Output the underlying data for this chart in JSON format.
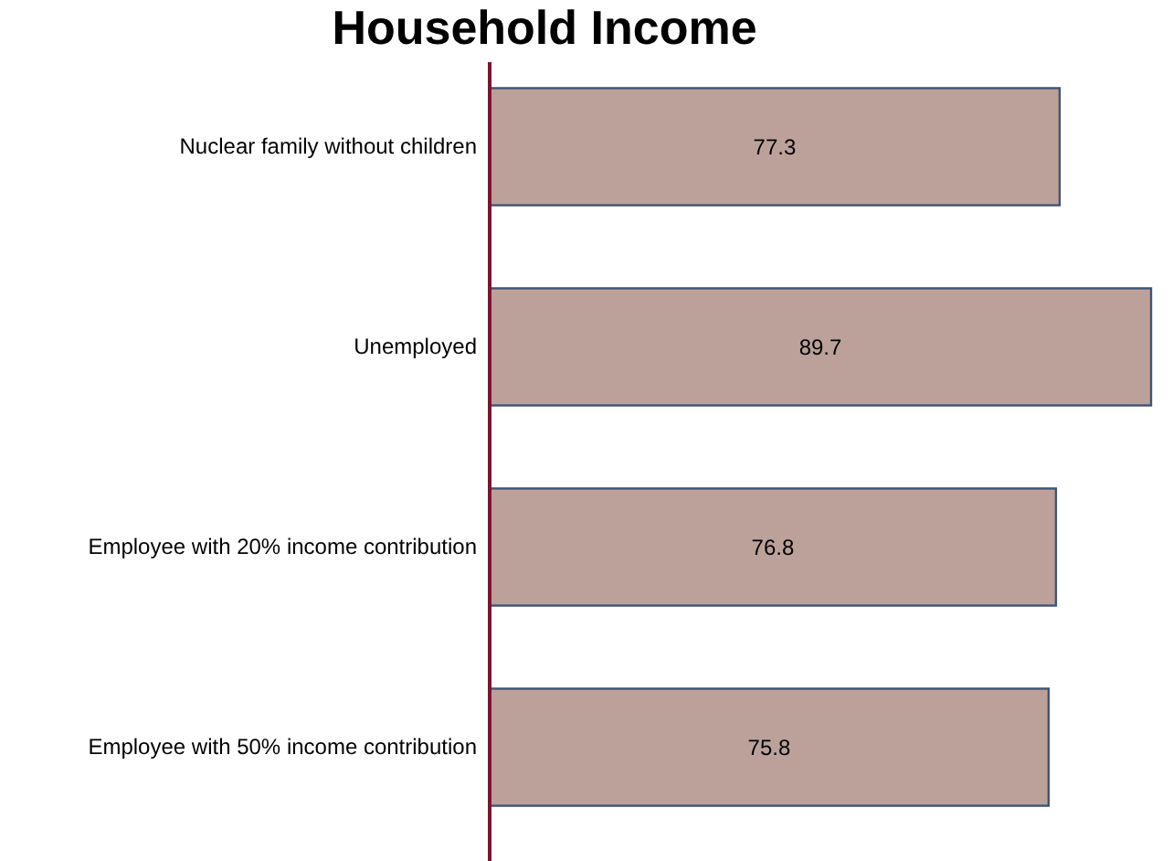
{
  "chart_data": {
    "type": "bar",
    "orientation": "horizontal",
    "title": "Household Income",
    "categories": [
      "Nuclear family without children",
      "Unemployed",
      "Employee with 20% income contribution",
      "Employee with 50% income contribution"
    ],
    "values": [
      77.3,
      89.7,
      76.8,
      75.8
    ],
    "color": "#bca19b",
    "data_labels": true
  }
}
